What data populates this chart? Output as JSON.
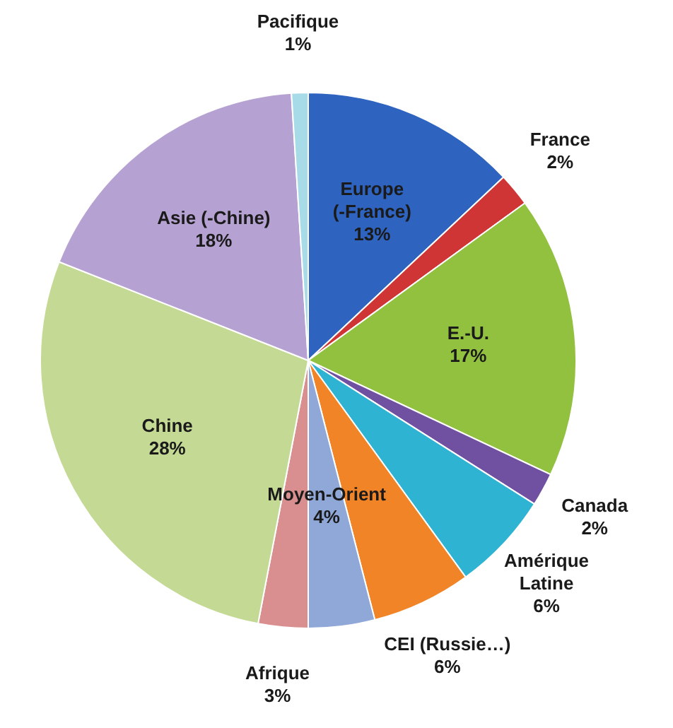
{
  "chart_data": {
    "type": "pie",
    "categories": [
      "Europe (-France)",
      "France",
      "E.-U.",
      "Canada",
      "Amérique Latine",
      "CEI (Russie…)",
      "Moyen-Orient",
      "Afrique",
      "Chine",
      "Asie (-Chine)",
      "Pacifique"
    ],
    "values": [
      13,
      2,
      17,
      2,
      6,
      6,
      4,
      3,
      28,
      18,
      1
    ],
    "value_labels": [
      "13%",
      "2%",
      "17%",
      "2%",
      "6%",
      "6%",
      "4%",
      "3%",
      "28%",
      "18%",
      "1%"
    ],
    "colors": [
      "#2e63bf",
      "#d03535",
      "#92c140",
      "#7050a0",
      "#2fb3d3",
      "#f08426",
      "#8fa8d8",
      "#d98f8f",
      "#c4da94",
      "#b6a2d2",
      "#a8dbe8"
    ],
    "legend": false
  }
}
